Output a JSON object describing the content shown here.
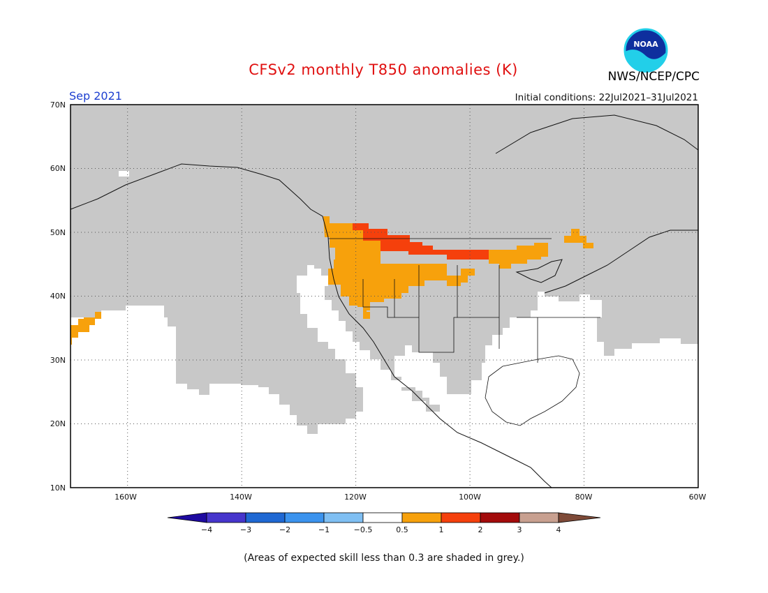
{
  "title": "CFSv2 monthly T850 anomalies (K)",
  "agency": "NWS/NCEP/CPC",
  "logo_text": "NOAA",
  "valid_month": "Sep 2021",
  "initial_conditions": "Initial conditions: 22Jul2021–31Jul2021",
  "footnote": "(Areas of expected skill less than 0.3 are shaded in grey.)",
  "map": {
    "lat_labels": [
      "70N",
      "60N",
      "50N",
      "40N",
      "30N",
      "20N",
      "10N"
    ],
    "lon_labels": [
      "160W",
      "140W",
      "120W",
      "100W",
      "80W",
      "60W"
    ],
    "lat_range": [
      10,
      70
    ],
    "lon_range": [
      -170,
      -60
    ],
    "grid": "dotted",
    "colors": {
      "low_skill_grey": "#c8c8c8",
      "anom_0_5_to_1": "#f7a10c",
      "anom_1_to_2": "#f5400c"
    }
  },
  "colorbar": {
    "tick_labels": [
      "−4",
      "−3",
      "−2",
      "−1",
      "−0.5",
      "0.5",
      "1",
      "2",
      "3",
      "4"
    ],
    "colors": [
      "#1e0aa0",
      "#4635cc",
      "#1f68d3",
      "#3b93ee",
      "#7fbff3",
      "#ffffff",
      "#f7a10c",
      "#f5400c",
      "#a30b0b",
      "#c8a090",
      "#7e4a38"
    ],
    "bins": [
      "< −4",
      "−4 to −3",
      "−3 to −2",
      "−2 to −1",
      "−1 to −0.5",
      "−0.5 to 0.5",
      "0.5 to 1",
      "1 to 2",
      "2 to 3",
      "3 to 4",
      "> 4"
    ]
  }
}
